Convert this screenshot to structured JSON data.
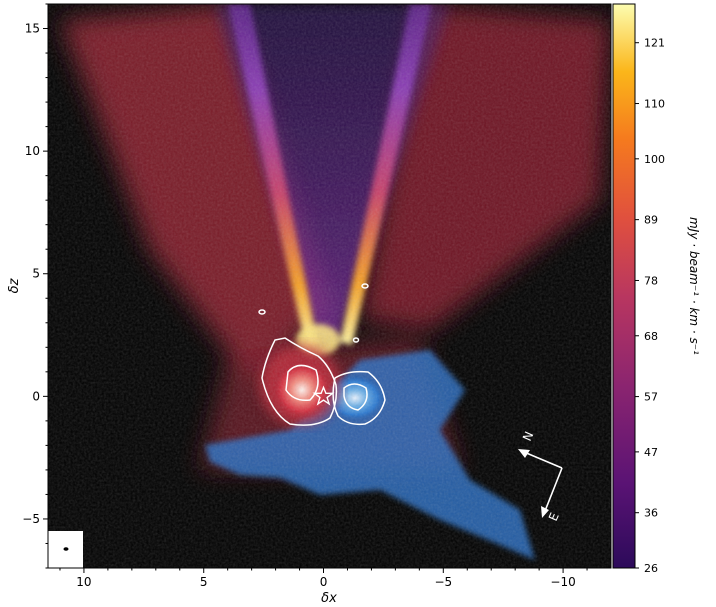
{
  "chart_data": {
    "type": "heatmap",
    "xlabel": "δx",
    "ylabel": "δz",
    "xlim": [
      11.5,
      -12.0
    ],
    "ylim": [
      -7.0,
      16.0
    ],
    "xticks": [
      {
        "value": 10,
        "label": "10"
      },
      {
        "value": 5,
        "label": "5"
      },
      {
        "value": 0,
        "label": "0"
      },
      {
        "value": -5,
        "label": "−5"
      },
      {
        "value": -10,
        "label": "−10"
      }
    ],
    "yticks": [
      {
        "value": -5,
        "label": "−5"
      },
      {
        "value": 0,
        "label": "0"
      },
      {
        "value": 5,
        "label": "5"
      },
      {
        "value": 10,
        "label": "10"
      },
      {
        "value": 15,
        "label": "15"
      }
    ],
    "colorbar": {
      "label": "mJy · beam⁻¹ · km · s⁻¹",
      "range": [
        26,
        128
      ],
      "ticks": [
        {
          "value": 121,
          "label": "121"
        },
        {
          "value": 110,
          "label": "110"
        },
        {
          "value": 100,
          "label": "100"
        },
        {
          "value": 89,
          "label": "89"
        },
        {
          "value": 78,
          "label": "78"
        },
        {
          "value": 68,
          "label": "68"
        },
        {
          "value": 57,
          "label": "57"
        },
        {
          "value": 47,
          "label": "47"
        },
        {
          "value": 36,
          "label": "36"
        },
        {
          "value": 26,
          "label": "26"
        }
      ],
      "colormap": "inferno"
    },
    "star": {
      "x": 0.0,
      "y": 0.0
    },
    "compass": {
      "north_label": "N",
      "east_label": "E"
    },
    "colors": {
      "background": "#000000",
      "redshifted": "#d0323c",
      "blueshifted": "#3a8ee0",
      "contour": "#ffffff"
    },
    "grid": false
  }
}
